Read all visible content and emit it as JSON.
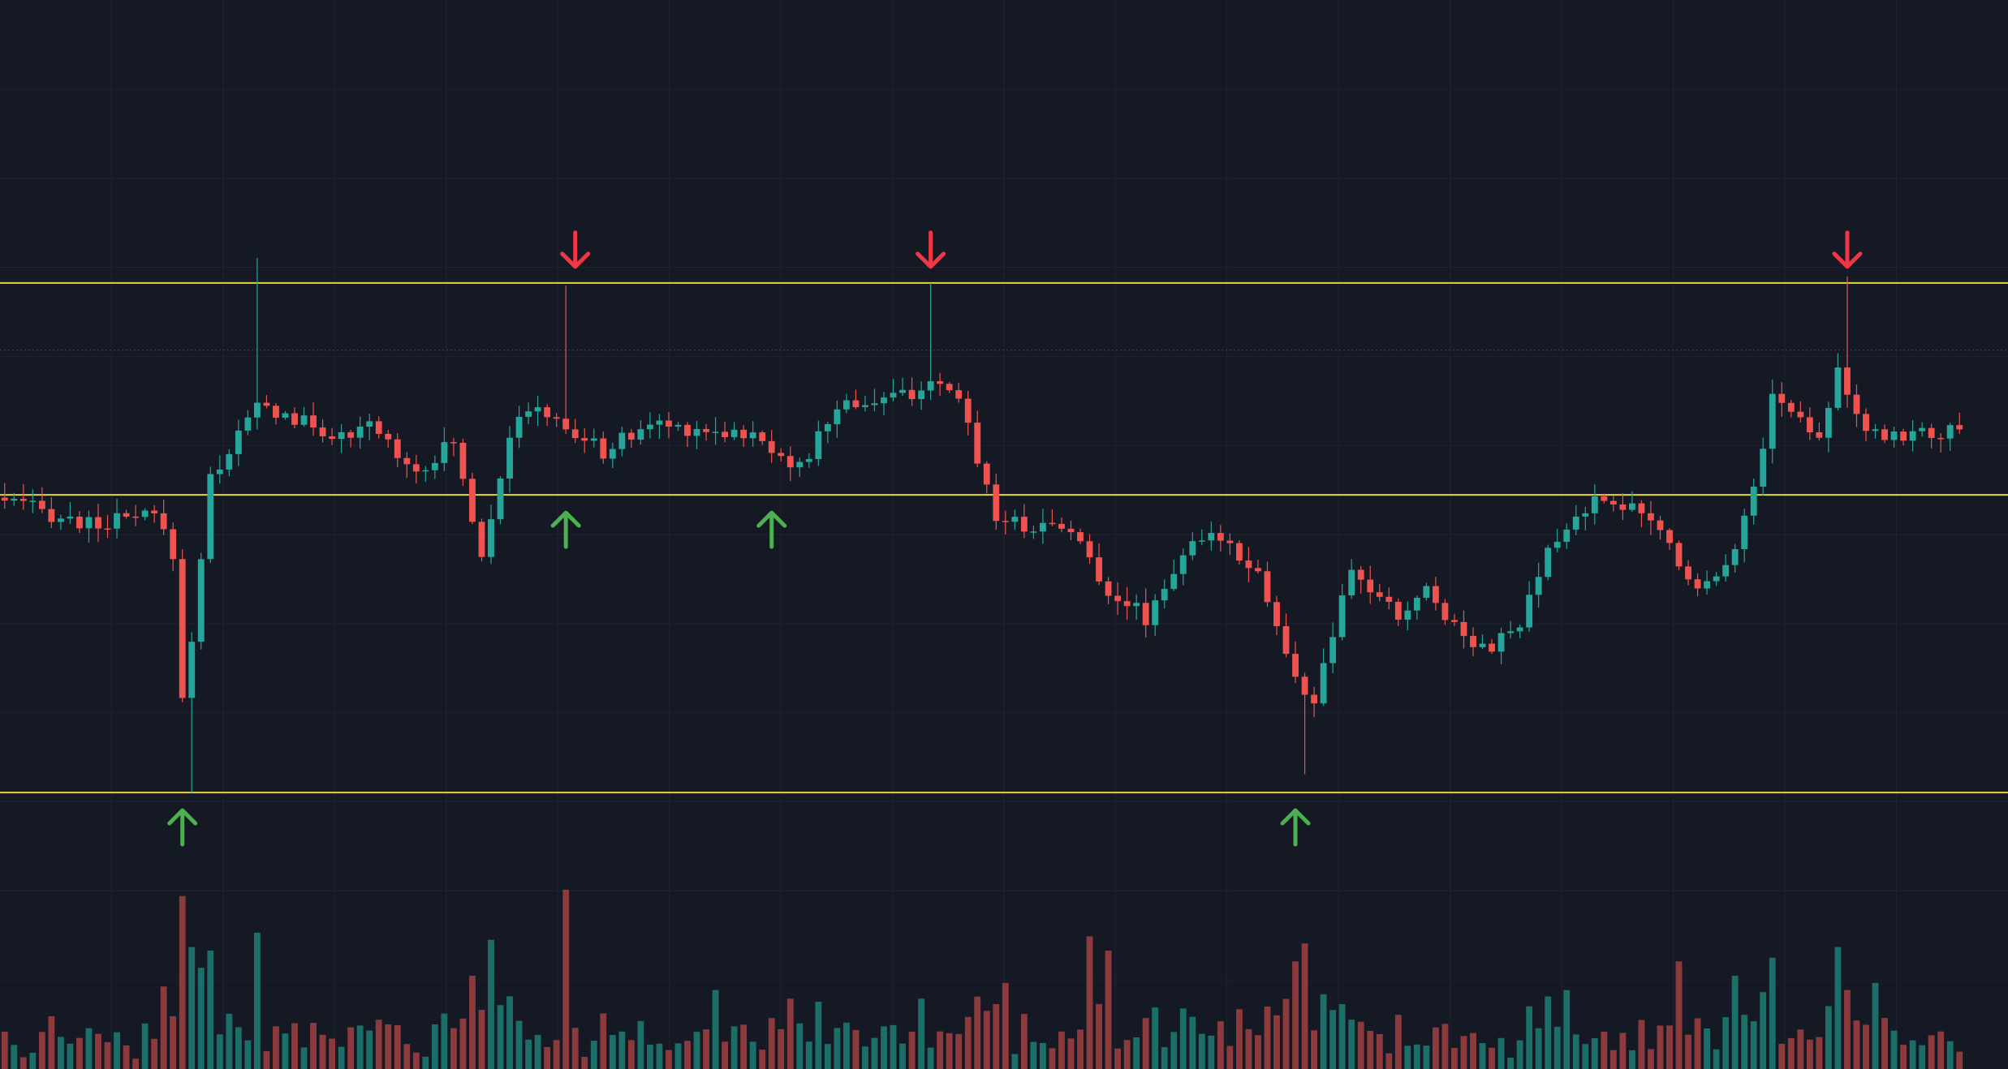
{
  "colors": {
    "background": "#151924",
    "grid": "#1f2331",
    "up": "#26a69a",
    "down": "#ef5350",
    "volume_up": "#1c6e68",
    "volume_down": "#8c3a3c",
    "level_line": "#e6d23c",
    "price_marker_line": "#7b2f38",
    "arrow_up": "#4caf50",
    "arrow_down": "#f23645"
  },
  "chart_data": {
    "type": "candlestick",
    "grid": true,
    "legend": "none",
    "bar_count": 210,
    "y_range": [
      0,
      1160
    ],
    "volume_range": [
      0,
      260
    ],
    "last_price": 780,
    "horizontal_levels": [
      853,
      623,
      300
    ],
    "key_points": [
      [
        0,
        620
      ],
      [
        10,
        590
      ],
      [
        17,
        600
      ],
      [
        19,
        560
      ],
      [
        20,
        400
      ],
      [
        21,
        470
      ],
      [
        23,
        640
      ],
      [
        28,
        720
      ],
      [
        32,
        705
      ],
      [
        38,
        680
      ],
      [
        40,
        700
      ],
      [
        45,
        650
      ],
      [
        49,
        680
      ],
      [
        52,
        560
      ],
      [
        55,
        690
      ],
      [
        58,
        720
      ],
      [
        60,
        700
      ],
      [
        65,
        670
      ],
      [
        70,
        700
      ],
      [
        80,
        690
      ],
      [
        84,
        670
      ],
      [
        86,
        650
      ],
      [
        90,
        720
      ],
      [
        97,
        730
      ],
      [
        99,
        740
      ],
      [
        103,
        730
      ],
      [
        107,
        600
      ],
      [
        110,
        590
      ],
      [
        115,
        590
      ],
      [
        118,
        530
      ],
      [
        123,
        490
      ],
      [
        127,
        560
      ],
      [
        131,
        580
      ],
      [
        135,
        540
      ],
      [
        139,
        420
      ],
      [
        141,
        400
      ],
      [
        145,
        540
      ],
      [
        150,
        490
      ],
      [
        153,
        520
      ],
      [
        157,
        470
      ],
      [
        160,
        460
      ],
      [
        163,
        480
      ],
      [
        166,
        560
      ],
      [
        170,
        610
      ],
      [
        173,
        620
      ],
      [
        178,
        585
      ],
      [
        182,
        520
      ],
      [
        186,
        565
      ],
      [
        188,
        630
      ],
      [
        190,
        730
      ],
      [
        195,
        690
      ],
      [
        197,
        760
      ],
      [
        200,
        685
      ],
      [
        205,
        690
      ],
      [
        209,
        690
      ]
    ],
    "volume_spikes": [
      [
        17,
        115
      ],
      [
        20,
        170
      ],
      [
        22,
        165
      ],
      [
        27,
        190
      ],
      [
        50,
        130
      ],
      [
        52,
        180
      ],
      [
        60,
        250
      ],
      [
        76,
        110
      ],
      [
        84,
        98
      ],
      [
        98,
        98
      ],
      [
        107,
        120
      ],
      [
        116,
        185
      ],
      [
        118,
        165
      ],
      [
        138,
        150
      ],
      [
        139,
        175
      ],
      [
        167,
        110
      ],
      [
        179,
        150
      ],
      [
        185,
        130
      ],
      [
        189,
        155
      ],
      [
        196,
        170
      ],
      [
        197,
        110
      ],
      [
        200,
        120
      ]
    ],
    "wick_spikes": [
      [
        27,
        880
      ],
      [
        60,
        850
      ],
      [
        99,
        853
      ],
      [
        197,
        860
      ],
      [
        20,
        300
      ],
      [
        117,
        560
      ],
      [
        139,
        320
      ]
    ],
    "annotations": [
      {
        "type": "arrow-down",
        "bar": 61,
        "price": 853
      },
      {
        "type": "arrow-down",
        "bar": 99,
        "price": 853
      },
      {
        "type": "arrow-down",
        "bar": 197,
        "price": 853
      },
      {
        "type": "arrow-up",
        "bar": 60,
        "price": 623
      },
      {
        "type": "arrow-up",
        "bar": 82,
        "price": 623
      },
      {
        "type": "arrow-up",
        "bar": 19,
        "price": 300
      },
      {
        "type": "arrow-up",
        "bar": 138,
        "price": 300
      }
    ]
  }
}
